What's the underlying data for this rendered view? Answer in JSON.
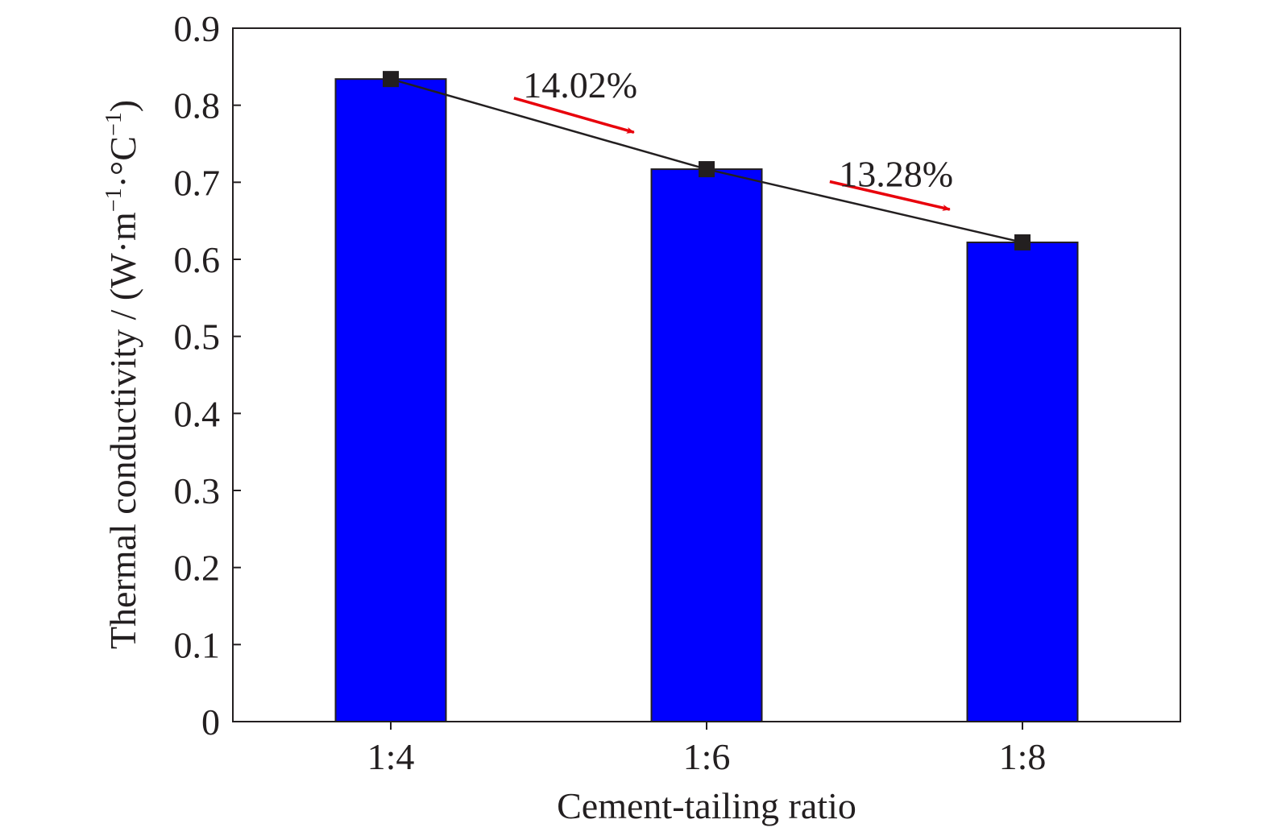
{
  "chart_data": {
    "type": "bar",
    "title": "",
    "xlabel": "Cement-tailing ratio",
    "ylabel_main": "Thermal conductivity / (W·m",
    "ylabel_sup1": "−1",
    "ylabel_mid": "·°C",
    "ylabel_sup2": "−1",
    "ylabel_end": ")",
    "categories": [
      "1:4",
      "1:6",
      "1:8"
    ],
    "values": [
      0.834,
      0.717,
      0.622
    ],
    "ylim": [
      0,
      0.9
    ],
    "yticks": [
      "0",
      "0.1",
      "0.2",
      "0.3",
      "0.4",
      "0.5",
      "0.6",
      "0.7",
      "0.8",
      "0.9"
    ],
    "bar_color": "#0000ff",
    "line_color": "#231f20",
    "marker": "square",
    "grid": false,
    "annotations": [
      {
        "text": "14.02%",
        "from_index": 0,
        "to_index": 1,
        "arrow_color": "#e8000b"
      },
      {
        "text": "13.28%",
        "from_index": 1,
        "to_index": 2,
        "arrow_color": "#e8000b"
      }
    ]
  }
}
